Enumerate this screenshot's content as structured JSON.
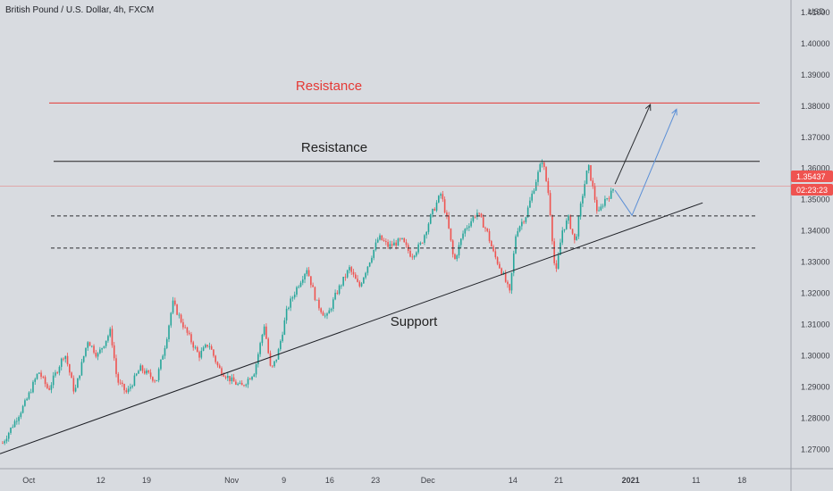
{
  "chart_data": {
    "type": "candlestick",
    "title": "British Pound / U.S. Dollar, 4h, FXCM",
    "currency": "USD",
    "ylim": [
      1.2638,
      1.414
    ],
    "y_ticks": [
      "1.27000",
      "1.28000",
      "1.29000",
      "1.30000",
      "1.31000",
      "1.32000",
      "1.33000",
      "1.34000",
      "1.35000",
      "1.36000",
      "1.37000",
      "1.38000",
      "1.39000",
      "1.40000",
      "1.41000"
    ],
    "x_ticks": [
      {
        "label": "Oct",
        "day": 1
      },
      {
        "label": "12",
        "day": 12
      },
      {
        "label": "19",
        "day": 19
      },
      {
        "label": "Nov",
        "day": 32
      },
      {
        "label": "9",
        "day": 40
      },
      {
        "label": "16",
        "day": 47
      },
      {
        "label": "23",
        "day": 54
      },
      {
        "label": "Dec",
        "day": 62
      },
      {
        "label": "14",
        "day": 75
      },
      {
        "label": "21",
        "day": 82
      },
      {
        "label": "2021",
        "day": 93
      },
      {
        "label": "11",
        "day": 103
      },
      {
        "label": "18",
        "day": 110
      }
    ],
    "x_range_days": [
      -3.4,
      117.5
    ],
    "last_price": "1.35437",
    "countdown": "02:23:23",
    "price_path": [
      [
        -3.0,
        1.272
      ],
      [
        0.5,
        1.285
      ],
      [
        2.5,
        1.295
      ],
      [
        4.0,
        1.289
      ],
      [
        6.5,
        1.301
      ],
      [
        8.0,
        1.288
      ],
      [
        10.0,
        1.305
      ],
      [
        11.5,
        1.3
      ],
      [
        13.5,
        1.308
      ],
      [
        14.5,
        1.292
      ],
      [
        16.0,
        1.288
      ],
      [
        18.0,
        1.296
      ],
      [
        20.5,
        1.292
      ],
      [
        22.0,
        1.305
      ],
      [
        23.0,
        1.317
      ],
      [
        25.0,
        1.308
      ],
      [
        27.0,
        1.3
      ],
      [
        28.5,
        1.304
      ],
      [
        30.0,
        1.296
      ],
      [
        32.0,
        1.292
      ],
      [
        33.5,
        1.29
      ],
      [
        35.5,
        1.295
      ],
      [
        37.0,
        1.31
      ],
      [
        38.0,
        1.295
      ],
      [
        39.0,
        1.3
      ],
      [
        40.5,
        1.315
      ],
      [
        42.0,
        1.322
      ],
      [
        43.5,
        1.328
      ],
      [
        45.0,
        1.317
      ],
      [
        46.5,
        1.312
      ],
      [
        48.0,
        1.32
      ],
      [
        50.0,
        1.328
      ],
      [
        51.5,
        1.322
      ],
      [
        53.0,
        1.33
      ],
      [
        54.5,
        1.338
      ],
      [
        56.0,
        1.335
      ],
      [
        58.0,
        1.337
      ],
      [
        59.5,
        1.332
      ],
      [
        61.0,
        1.336
      ],
      [
        62.5,
        1.345
      ],
      [
        64.0,
        1.352
      ],
      [
        65.0,
        1.343
      ],
      [
        66.0,
        1.33
      ],
      [
        67.5,
        1.34
      ],
      [
        69.5,
        1.346
      ],
      [
        71.0,
        1.34
      ],
      [
        72.0,
        1.333
      ],
      [
        73.5,
        1.326
      ],
      [
        74.5,
        1.32
      ],
      [
        75.5,
        1.34
      ],
      [
        77.0,
        1.345
      ],
      [
        78.5,
        1.356
      ],
      [
        79.5,
        1.363
      ],
      [
        80.5,
        1.351
      ],
      [
        81.0,
        1.338
      ],
      [
        81.5,
        1.325
      ],
      [
        82.5,
        1.34
      ],
      [
        83.5,
        1.344
      ],
      [
        84.5,
        1.336
      ],
      [
        85.5,
        1.35
      ],
      [
        86.5,
        1.361
      ],
      [
        87.0,
        1.356
      ],
      [
        88.0,
        1.345
      ],
      [
        89.0,
        1.35
      ],
      [
        90.0,
        1.352
      ],
      [
        90.5,
        1.3544
      ]
    ],
    "annotations": [
      {
        "text": "Resistance",
        "price": 1.381,
        "color": "#e53935"
      },
      {
        "text": "Resistance",
        "price": 1.3623,
        "color": "#222222"
      },
      {
        "text": "Support",
        "color": "#222222"
      }
    ],
    "support_line": {
      "from": [
        -3.4,
        1.2686
      ],
      "to": [
        104.0,
        1.349
      ]
    },
    "dashed_levels": [
      1.3448,
      1.3345
    ],
    "projection_arrows": [
      {
        "color": "#2b2d31",
        "points": [
          [
            90.6,
            1.355
          ],
          [
            96.0,
            1.3805
          ]
        ]
      },
      {
        "color": "#5b8fd6",
        "points": [
          [
            90.6,
            1.353
          ],
          [
            93.2,
            1.345
          ],
          [
            100.0,
            1.379
          ]
        ]
      }
    ],
    "colors": {
      "up": "#26a69a",
      "down": "#ef5350",
      "background": "#d8dbe0",
      "price_badge": "#ef5350"
    },
    "grid": false
  }
}
